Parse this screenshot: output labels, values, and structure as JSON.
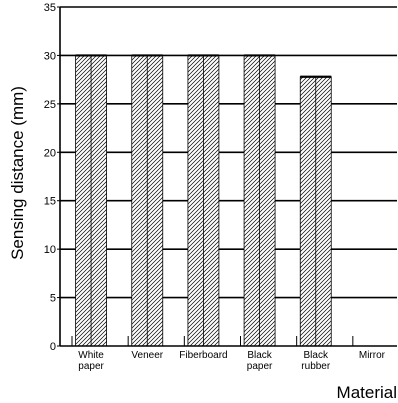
{
  "chart_data": {
    "type": "bar",
    "title": "",
    "ylabel": "Sensing distance (mm)",
    "xlabel": "Material",
    "ylim": [
      0,
      35
    ],
    "yticks": [
      0,
      5,
      10,
      15,
      20,
      25,
      30,
      35
    ],
    "grid": "horizontal",
    "bar_fill": "diagonal-hatch",
    "categories": [
      [
        "White",
        "paper"
      ],
      [
        "Veneer"
      ],
      [
        "Fiberboard"
      ],
      [
        "Black",
        "paper"
      ],
      [
        "Black",
        "rubber"
      ],
      [
        "Mirror"
      ]
    ],
    "values": [
      30,
      30,
      30,
      30,
      27.8,
      0
    ]
  }
}
